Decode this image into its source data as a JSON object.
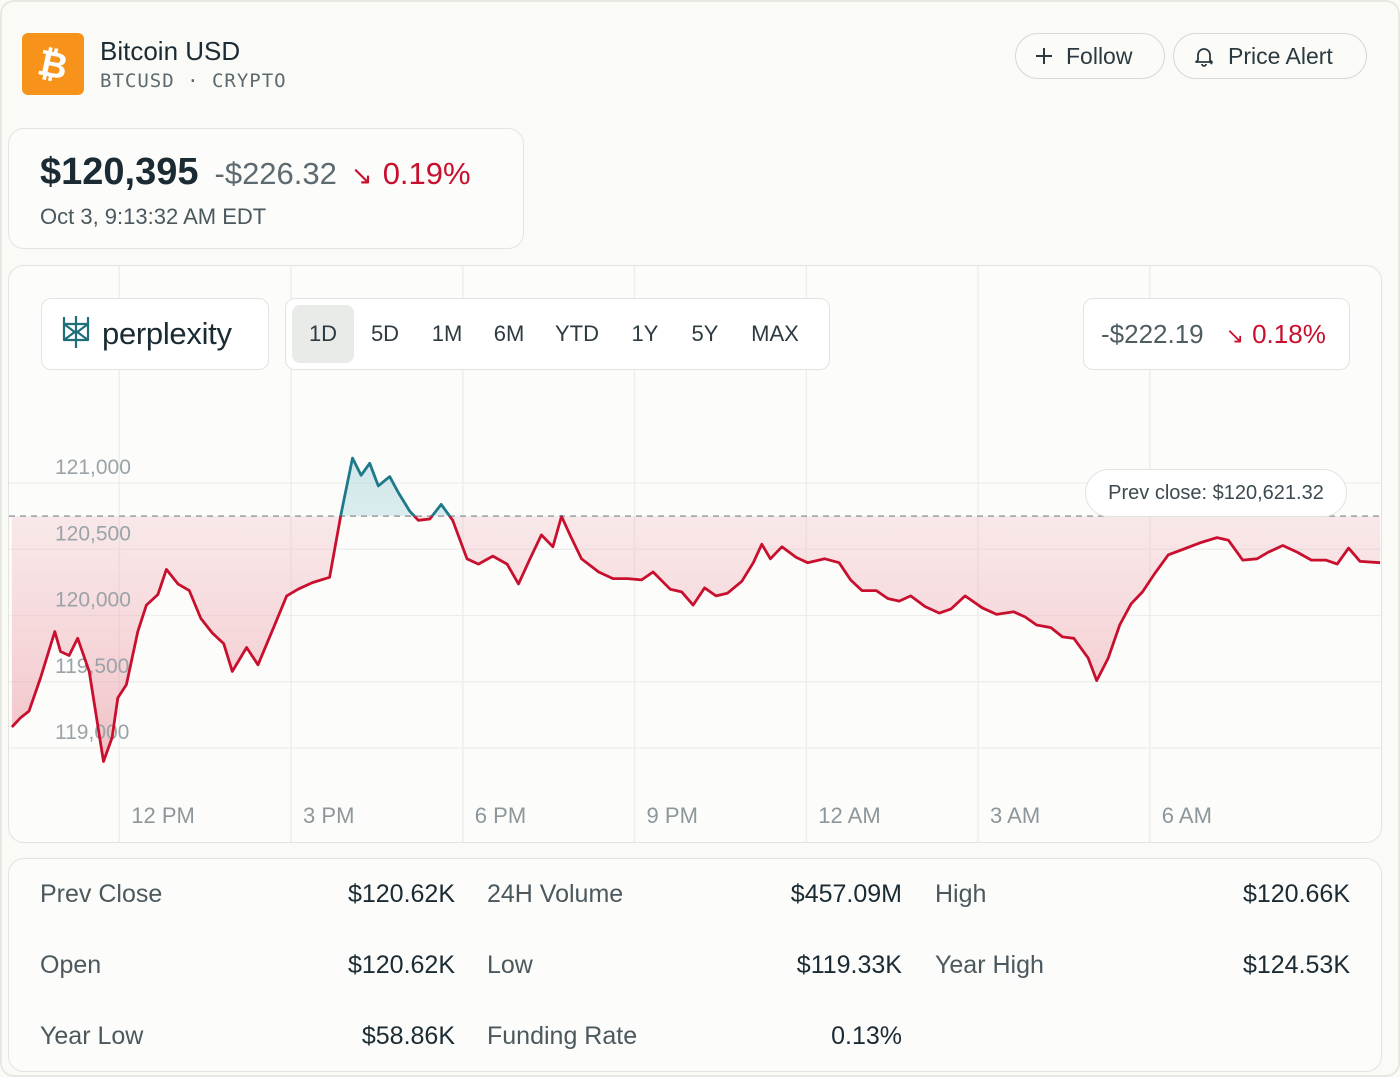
{
  "asset": {
    "name": "Bitcoin USD",
    "symbol_line": "BTCUSD · CRYPTO",
    "logo_icon": "bitcoin-icon",
    "logo_color": "#f7931a"
  },
  "header_buttons": {
    "follow": {
      "label": "Follow",
      "icon": "plus-icon"
    },
    "price_alert": {
      "label": "Price Alert",
      "icon": "bell-icon"
    }
  },
  "quote": {
    "price": "$120,395",
    "change": "-$226.32",
    "change_pct": "0.19%",
    "direction_icon": "arrow-down-right-icon",
    "timestamp": "Oct 3, 9:13:32 AM EDT"
  },
  "chart_panel": {
    "brand": "perplexity",
    "ranges": [
      "1D",
      "5D",
      "1M",
      "6M",
      "YTD",
      "1Y",
      "5Y",
      "MAX"
    ],
    "active_range": "1D",
    "session_change": "-$222.19",
    "session_change_pct": "0.18%",
    "prev_close_label": "Prev close: $120,621.32"
  },
  "colors": {
    "down": "#c8102e",
    "up": "#1e7a8a",
    "brand": "#1e6f7a"
  },
  "chart_data": {
    "type": "line",
    "title": "",
    "x_ticks": [
      "12 PM",
      "3 PM",
      "6 PM",
      "9 PM",
      "12 AM",
      "3 AM",
      "6 AM"
    ],
    "x_ticks_hours": [
      12,
      15,
      18,
      21,
      24,
      27,
      30
    ],
    "y_ticks": [
      "121,000",
      "120,500",
      "120,000",
      "119,500",
      "119,000"
    ],
    "y_tick_values": [
      121000,
      120500,
      120000,
      119500,
      119000
    ],
    "ylim": [
      118650,
      121400
    ],
    "xlim_hours": [
      9.2,
      33.2
    ],
    "prev_close": 120621.32,
    "grid": true,
    "series": [
      {
        "points": [
          [
            9.25,
            119030
          ],
          [
            9.4,
            119100
          ],
          [
            9.55,
            119150
          ],
          [
            9.75,
            119400
          ],
          [
            10.0,
            119750
          ],
          [
            10.1,
            119600
          ],
          [
            10.25,
            119570
          ],
          [
            10.4,
            119700
          ],
          [
            10.6,
            119450
          ],
          [
            10.85,
            118770
          ],
          [
            11.0,
            118950
          ],
          [
            11.1,
            119250
          ],
          [
            11.25,
            119350
          ],
          [
            11.45,
            119750
          ],
          [
            11.6,
            119950
          ],
          [
            11.8,
            120030
          ],
          [
            11.95,
            120220
          ],
          [
            12.15,
            120110
          ],
          [
            12.35,
            120060
          ],
          [
            12.55,
            119850
          ],
          [
            12.75,
            119740
          ],
          [
            12.95,
            119660
          ],
          [
            13.1,
            119450
          ],
          [
            13.35,
            119630
          ],
          [
            13.55,
            119500
          ],
          [
            13.85,
            119810
          ],
          [
            14.05,
            120020
          ],
          [
            14.25,
            120070
          ],
          [
            14.5,
            120120
          ],
          [
            14.8,
            120160
          ],
          [
            15.0,
            120640
          ],
          [
            15.2,
            121060
          ],
          [
            15.35,
            120930
          ],
          [
            15.5,
            121020
          ],
          [
            15.65,
            120850
          ],
          [
            15.85,
            120920
          ],
          [
            16.0,
            120800
          ],
          [
            16.2,
            120660
          ],
          [
            16.35,
            120590
          ],
          [
            16.55,
            120600
          ],
          [
            16.75,
            120710
          ],
          [
            16.95,
            120590
          ],
          [
            17.2,
            120300
          ],
          [
            17.4,
            120260
          ],
          [
            17.65,
            120320
          ],
          [
            17.9,
            120260
          ],
          [
            18.1,
            120110
          ],
          [
            18.3,
            120300
          ],
          [
            18.5,
            120480
          ],
          [
            18.7,
            120390
          ],
          [
            18.85,
            120620
          ],
          [
            19.0,
            120480
          ],
          [
            19.2,
            120300
          ],
          [
            19.5,
            120200
          ],
          [
            19.75,
            120150
          ],
          [
            20.0,
            120150
          ],
          [
            20.25,
            120140
          ],
          [
            20.45,
            120200
          ],
          [
            20.75,
            120070
          ],
          [
            20.95,
            120050
          ],
          [
            21.15,
            119950
          ],
          [
            21.35,
            120080
          ],
          [
            21.55,
            120020
          ],
          [
            21.75,
            120040
          ],
          [
            22.0,
            120130
          ],
          [
            22.2,
            120270
          ],
          [
            22.35,
            120410
          ],
          [
            22.5,
            120300
          ],
          [
            22.7,
            120390
          ],
          [
            22.95,
            120310
          ],
          [
            23.15,
            120270
          ],
          [
            23.45,
            120300
          ],
          [
            23.7,
            120270
          ],
          [
            23.9,
            120140
          ],
          [
            24.1,
            120060
          ],
          [
            24.35,
            120060
          ],
          [
            24.55,
            120000
          ],
          [
            24.75,
            119980
          ],
          [
            24.95,
            120020
          ],
          [
            25.2,
            119940
          ],
          [
            25.45,
            119890
          ],
          [
            25.65,
            119920
          ],
          [
            25.9,
            120020
          ],
          [
            26.2,
            119930
          ],
          [
            26.45,
            119880
          ],
          [
            26.75,
            119900
          ],
          [
            26.95,
            119860
          ],
          [
            27.15,
            119800
          ],
          [
            27.4,
            119780
          ],
          [
            27.6,
            119710
          ],
          [
            27.8,
            119700
          ],
          [
            28.05,
            119550
          ],
          [
            28.2,
            119380
          ],
          [
            28.4,
            119550
          ],
          [
            28.6,
            119800
          ],
          [
            28.8,
            119960
          ],
          [
            29.0,
            120050
          ],
          [
            29.2,
            120180
          ],
          [
            29.45,
            120330
          ],
          [
            29.7,
            120370
          ],
          [
            30.0,
            120420
          ],
          [
            30.3,
            120460
          ],
          [
            30.5,
            120440
          ],
          [
            30.75,
            120290
          ],
          [
            31.0,
            120300
          ],
          [
            31.2,
            120350
          ],
          [
            31.45,
            120400
          ],
          [
            31.7,
            120350
          ],
          [
            31.95,
            120290
          ],
          [
            32.2,
            120290
          ],
          [
            32.4,
            120260
          ],
          [
            32.6,
            120380
          ],
          [
            32.8,
            120280
          ],
          [
            33.15,
            120270
          ]
        ]
      }
    ]
  },
  "stats": [
    {
      "label": "Prev Close",
      "value": "$120.62K"
    },
    {
      "label": "24H Volume",
      "value": "$457.09M"
    },
    {
      "label": "High",
      "value": "$120.66K"
    },
    {
      "label": "Open",
      "value": "$120.62K"
    },
    {
      "label": "Low",
      "value": "$119.33K"
    },
    {
      "label": "Year High",
      "value": "$124.53K"
    },
    {
      "label": "Year Low",
      "value": "$58.86K"
    },
    {
      "label": "Funding Rate",
      "value": "0.13%"
    }
  ]
}
